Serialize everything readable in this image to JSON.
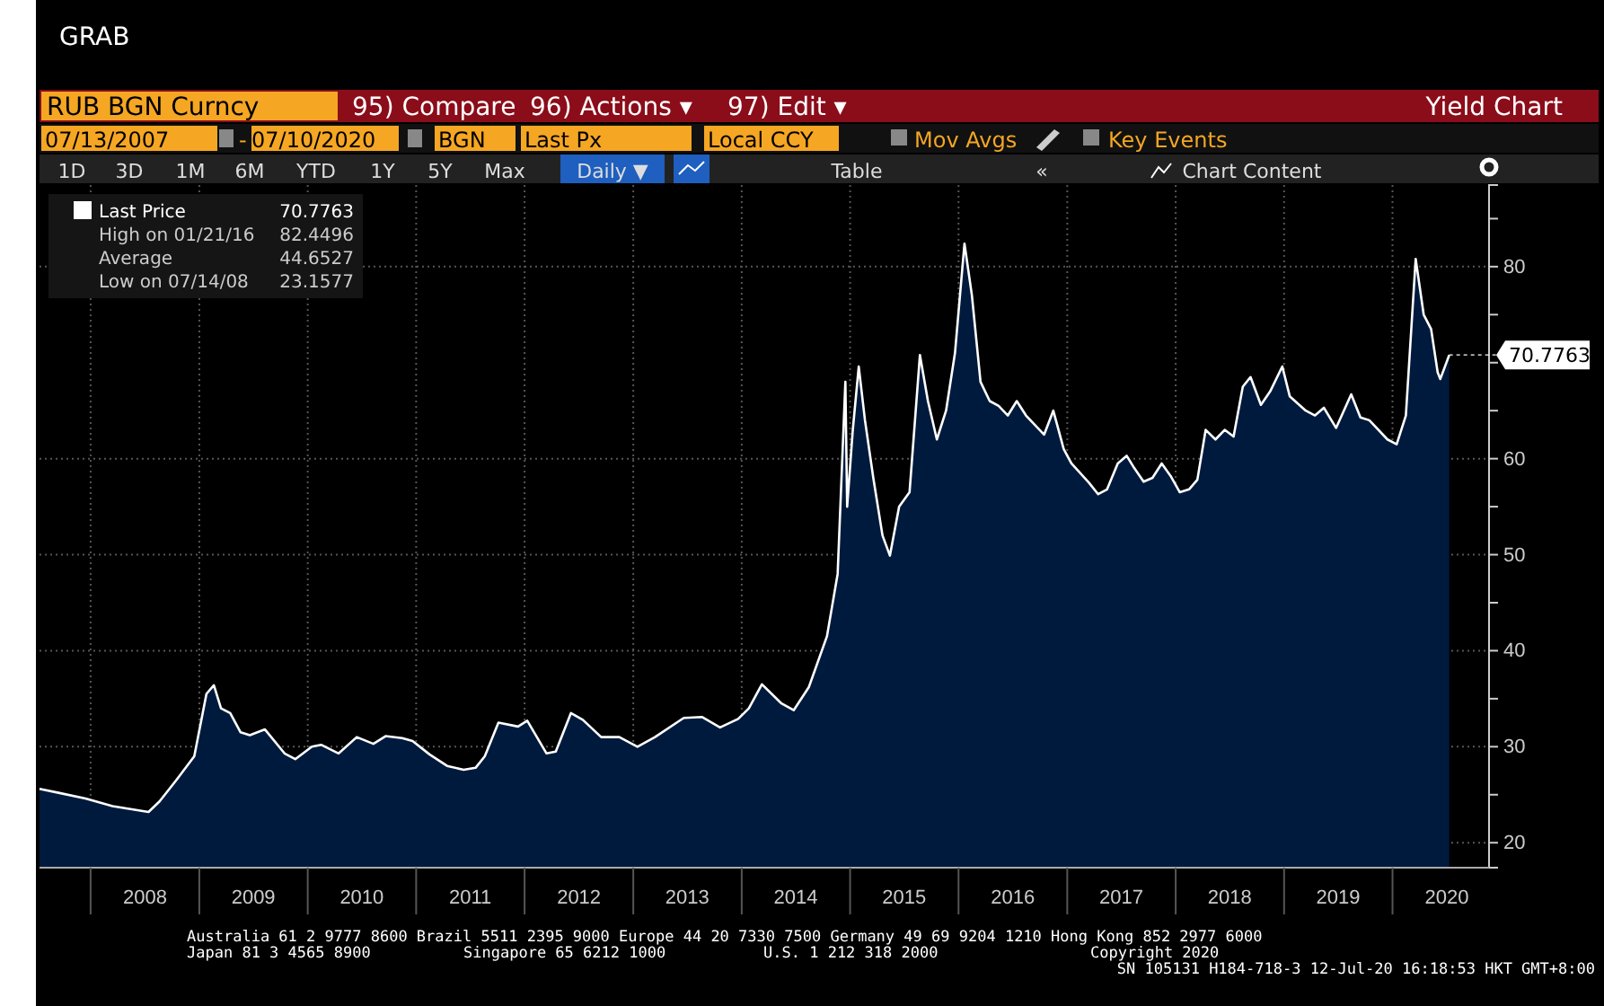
{
  "chart_data": {
    "type": "area",
    "title": "GRAB",
    "x": [
      "2007-07-13",
      "2007-09-15",
      "2007-12-15",
      "2008-03-15",
      "2008-07-14",
      "2008-08-20",
      "2008-10-15",
      "2008-12-15",
      "2009-01-25",
      "2009-02-19",
      "2009-03-15",
      "2009-04-15",
      "2009-05-20",
      "2009-06-20",
      "2009-08-10",
      "2009-10-15",
      "2009-11-20",
      "2010-01-15",
      "2010-02-15",
      "2010-04-15",
      "2010-06-15",
      "2010-08-10",
      "2010-09-20",
      "2010-11-15",
      "2010-12-20",
      "2011-02-15",
      "2011-04-15",
      "2011-06-10",
      "2011-07-20",
      "2011-08-20",
      "2011-10-05",
      "2011-12-10",
      "2012-01-10",
      "2012-03-15",
      "2012-04-15",
      "2012-06-05",
      "2012-07-15",
      "2012-09-15",
      "2012-11-15",
      "2013-01-15",
      "2013-03-15",
      "2013-06-20",
      "2013-08-20",
      "2013-10-20",
      "2013-12-20",
      "2014-01-25",
      "2014-03-10",
      "2014-05-15",
      "2014-06-25",
      "2014-08-15",
      "2014-10-15",
      "2014-11-20",
      "2014-12-16",
      "2014-12-22",
      "2015-01-10",
      "2015-01-30",
      "2015-02-20",
      "2015-03-20",
      "2015-04-20",
      "2015-05-15",
      "2015-06-15",
      "2015-07-20",
      "2015-08-24",
      "2015-09-20",
      "2015-10-20",
      "2015-11-20",
      "2015-12-20",
      "2016-01-21",
      "2016-02-15",
      "2016-03-15",
      "2016-04-15",
      "2016-05-15",
      "2016-06-15",
      "2016-07-15",
      "2016-08-15",
      "2016-10-15",
      "2016-11-15",
      "2016-12-20",
      "2017-01-15",
      "2017-03-15",
      "2017-04-15",
      "2017-05-15",
      "2017-06-20",
      "2017-07-20",
      "2017-08-15",
      "2017-09-15",
      "2017-10-15",
      "2017-11-15",
      "2017-12-15",
      "2018-01-15",
      "2018-02-15",
      "2018-03-15",
      "2018-04-12",
      "2018-05-15",
      "2018-06-15",
      "2018-07-15",
      "2018-08-15",
      "2018-09-10",
      "2018-10-15",
      "2018-11-15",
      "2018-12-26",
      "2019-01-20",
      "2019-03-15",
      "2019-04-15",
      "2019-05-15",
      "2019-06-25",
      "2019-08-15",
      "2019-09-15",
      "2019-10-15",
      "2019-12-15",
      "2020-01-15",
      "2020-02-15",
      "2020-03-19",
      "2020-04-15",
      "2020-05-10",
      "2020-06-01",
      "2020-06-10",
      "2020-07-10"
    ],
    "series": [
      {
        "name": "Last Price",
        "color": "#ffffff",
        "values": [
          25.6,
          25.2,
          24.6,
          23.8,
          23.2,
          24.3,
          26.5,
          29.0,
          35.5,
          36.4,
          34.0,
          33.5,
          31.5,
          31.2,
          31.8,
          29.3,
          28.7,
          30.0,
          30.2,
          29.3,
          31.0,
          30.3,
          31.1,
          30.9,
          30.6,
          29.2,
          28.0,
          27.6,
          27.8,
          29.0,
          32.5,
          32.1,
          32.7,
          29.3,
          29.5,
          33.5,
          32.8,
          31.0,
          31.0,
          30.0,
          31.0,
          33.0,
          33.1,
          32.0,
          32.9,
          34.0,
          36.5,
          34.5,
          33.8,
          36.2,
          41.5,
          48.0,
          68.0,
          55.0,
          63.0,
          69.6,
          64.0,
          58.0,
          52.0,
          49.9,
          55.0,
          56.5,
          70.8,
          66.0,
          62.0,
          65.0,
          71.0,
          82.4,
          77.0,
          68.0,
          66.0,
          65.5,
          64.5,
          66.0,
          64.5,
          62.5,
          65.0,
          61.0,
          59.5,
          57.5,
          56.3,
          56.8,
          59.5,
          60.3,
          59.0,
          57.6,
          58.0,
          59.5,
          58.2,
          56.5,
          56.8,
          57.8,
          63.0,
          62.0,
          63.0,
          62.3,
          67.5,
          68.5,
          65.6,
          67.0,
          69.6,
          66.5,
          65.0,
          64.5,
          65.3,
          63.2,
          66.7,
          64.3,
          64.0,
          62.0,
          61.5,
          64.5,
          80.8,
          75.0,
          73.5,
          69.0,
          68.3,
          70.8
        ]
      }
    ],
    "xlim": [
      "2007-07-13",
      "2020-11-21"
    ],
    "xticks": [
      {
        "value": "2008-01-01",
        "label": null
      },
      {
        "value": "2008-07-02",
        "label": "2008"
      },
      {
        "value": "2009-01-01",
        "label": null
      },
      {
        "value": "2009-07-02",
        "label": "2009"
      },
      {
        "value": "2010-01-01",
        "label": null
      },
      {
        "value": "2010-07-02",
        "label": "2010"
      },
      {
        "value": "2011-01-01",
        "label": null
      },
      {
        "value": "2011-07-02",
        "label": "2011"
      },
      {
        "value": "2012-01-01",
        "label": null
      },
      {
        "value": "2012-07-02",
        "label": "2012"
      },
      {
        "value": "2013-01-01",
        "label": null
      },
      {
        "value": "2013-07-02",
        "label": "2013"
      },
      {
        "value": "2014-01-01",
        "label": null
      },
      {
        "value": "2014-07-02",
        "label": "2014"
      },
      {
        "value": "2015-01-01",
        "label": null
      },
      {
        "value": "2015-07-02",
        "label": "2015"
      },
      {
        "value": "2016-01-01",
        "label": null
      },
      {
        "value": "2016-07-02",
        "label": "2016"
      },
      {
        "value": "2017-01-01",
        "label": null
      },
      {
        "value": "2017-07-02",
        "label": "2017"
      },
      {
        "value": "2018-01-01",
        "label": null
      },
      {
        "value": "2018-07-02",
        "label": "2018"
      },
      {
        "value": "2019-01-01",
        "label": null
      },
      {
        "value": "2019-07-02",
        "label": "2019"
      },
      {
        "value": "2020-01-01",
        "label": null
      },
      {
        "value": "2020-07-02",
        "label": "2020"
      }
    ],
    "ylim": [
      17.4,
      88.5
    ],
    "yticks": [
      20,
      {
        "value": 25,
        "label": null
      },
      30,
      {
        "value": 35,
        "label": null
      },
      40,
      {
        "value": 45,
        "label": null
      },
      50,
      {
        "value": 55,
        "label": null
      },
      60,
      {
        "value": 65,
        "label": null
      },
      {
        "value": 70,
        "label": null
      },
      {
        "value": 75,
        "label": null
      },
      80,
      {
        "value": 85,
        "label": null
      }
    ],
    "grid": true,
    "legend": "top left",
    "annotations": [
      "RUB BGN Curncy",
      "95) Compare",
      "96) Actions ▾",
      "97) Edit ▾",
      "Yield Chart",
      "07/13/2007",
      "-",
      "07/10/2020",
      "BGN",
      "Last Px",
      "Local CCY",
      "Mov Avgs",
      "Key Events",
      "1D",
      "3D",
      "1M",
      "6M",
      "YTD",
      "1Y",
      "5Y",
      "Max",
      "Daily ▼",
      "Table",
      "«",
      "Chart Content",
      "High on 01/21/16",
      "82.4496",
      "Average",
      "44.6527",
      "Low on 07/14/08",
      "23.1577",
      "Australia 61 2 9777 8600 Brazil 5511 2395 9000 Europe 44 20 7330 7500 Germany 49 69 9204 1210 Hong Kong 852 2977 6000",
      "Japan 81 3 4565 8900",
      "Singapore 65 6212 1000",
      "U.S. 1 212 318 2000",
      "Copyright 2020",
      "SN 105131 H184-718-3 12-Jul-20 16:18:53 HKT  GMT+8:00",
      "70.7763"
    ]
  }
}
